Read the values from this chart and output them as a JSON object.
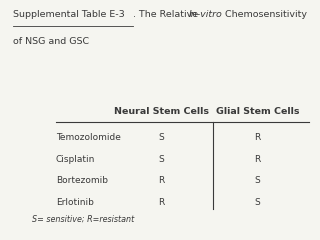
{
  "title_underlined": "Supplemental Table E-3",
  "title_rest1": ". The Relative ",
  "title_italic": "In-vitro",
  "title_rest2": " Chemosensitivity",
  "title_line2": "of NSG and GSC",
  "col_headers": [
    "Neural Stem Cells",
    "Glial Stem Cells"
  ],
  "row_labels": [
    "Temozolomide",
    "Cisplatin",
    "Bortezomib",
    "Erlotinib"
  ],
  "nsc_values": [
    "S",
    "S",
    "R",
    "R"
  ],
  "gsc_values": [
    "R",
    "R",
    "S",
    "S"
  ],
  "footnote": "S= sensitive; R=resistant",
  "bg_color": "#f5f5f0",
  "text_color": "#3a3a3a"
}
